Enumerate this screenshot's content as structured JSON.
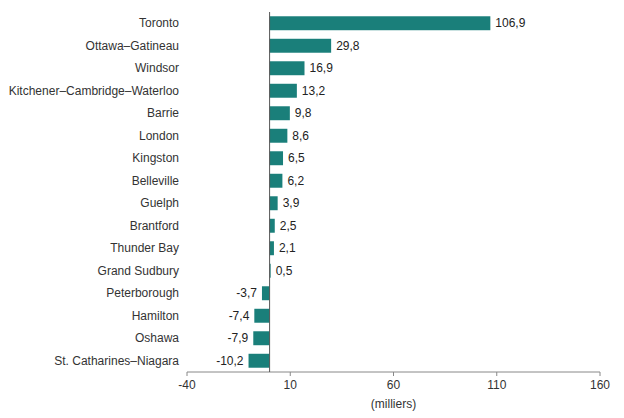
{
  "chart_data": {
    "type": "bar",
    "orientation": "horizontal",
    "categories": [
      "Toronto",
      "Ottawa–Gatineau",
      "Windsor",
      "Kitchener–Cambridge–Waterloo",
      "Barrie",
      "London",
      "Kingston",
      "Belleville",
      "Guelph",
      "Brantford",
      "Thunder Bay",
      "Grand Sudbury",
      "Peterborough",
      "Hamilton",
      "Oshawa",
      "St. Catharines–Niagara"
    ],
    "values": [
      106.9,
      29.8,
      16.9,
      13.2,
      9.8,
      8.6,
      6.5,
      6.2,
      3.9,
      2.5,
      2.1,
      0.5,
      -3.7,
      -7.4,
      -7.9,
      -10.2
    ],
    "value_labels": [
      "106,9",
      "29,8",
      "16,9",
      "13,2",
      "9,8",
      "8,6",
      "6,5",
      "6,2",
      "3,9",
      "2,5",
      "2,1",
      "0,5",
      "-3,7",
      "-7,4",
      "-7,9",
      "-10,2"
    ],
    "color": "#1a7f7a",
    "xlabel": "(milliers)",
    "xlim": [
      -40,
      160
    ],
    "xticks": [
      -40,
      10,
      60,
      110,
      160
    ],
    "data_labels": true,
    "grid": false
  }
}
